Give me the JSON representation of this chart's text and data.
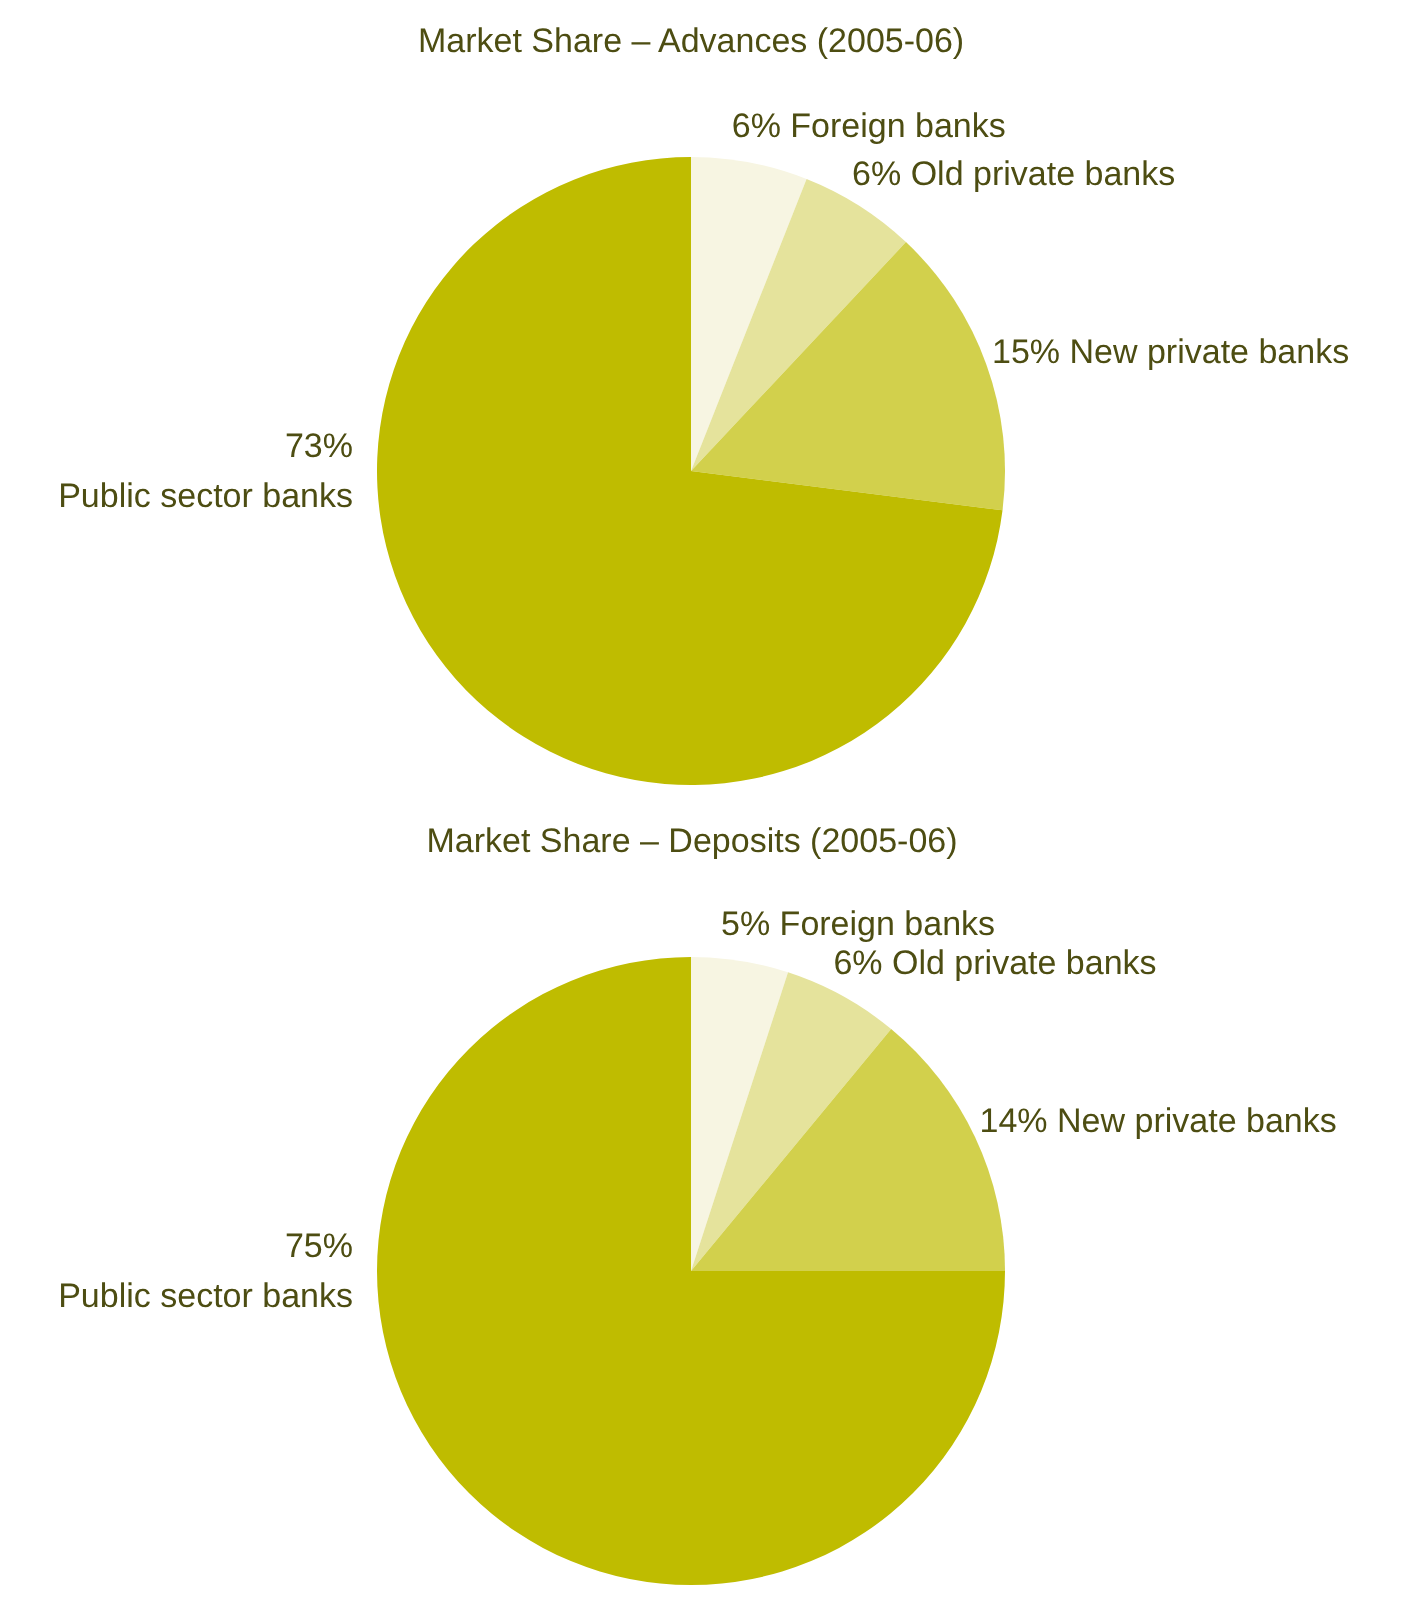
{
  "chart_data": [
    {
      "type": "pie",
      "title": "Market Share – Advances (2005-06)",
      "categories": [
        "Foreign banks",
        "Old private banks",
        "New private banks",
        "Public sector banks"
      ],
      "values": [
        6,
        6,
        15,
        73
      ],
      "value_labels": [
        "6%",
        "6%",
        "15%",
        "73%"
      ],
      "colors": [
        "#f7f5e2",
        "#e5e39c",
        "#d2d04c",
        "#bfbc00"
      ]
    },
    {
      "type": "pie",
      "title": "Market Share – Deposits (2005-06)",
      "categories": [
        "Foreign banks",
        "Old private banks",
        "New private banks",
        "Public sector banks"
      ],
      "values": [
        5,
        6,
        14,
        75
      ],
      "value_labels": [
        "5%",
        "6%",
        "14%",
        "75%"
      ],
      "colors": [
        "#f7f5e2",
        "#e5e39c",
        "#d2d04c",
        "#bfbc00"
      ]
    }
  ]
}
